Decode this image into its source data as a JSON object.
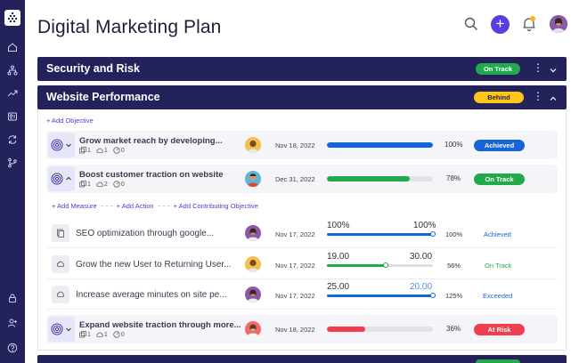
{
  "page": {
    "title": "Digital Marketing Plan"
  },
  "header": {
    "add_label": "+"
  },
  "sidebar": {
    "logo": "logo-icon",
    "items": [
      "home-icon",
      "hierarchy-icon",
      "trend-icon",
      "people-icon",
      "refresh-icon",
      "branch-icon"
    ],
    "bottom": [
      "lock-icon",
      "user-add-icon",
      "help-icon"
    ]
  },
  "colors": {
    "navy": "#24225b",
    "accent": "#5a3fe0",
    "green": "#22a94b",
    "blue": "#1565d8",
    "yellow": "#ffc61a",
    "red": "#f03e4f"
  },
  "sections": {
    "security": {
      "title": "Security and Risk",
      "status": "On Track"
    },
    "performance": {
      "title": "Website Performance",
      "status": "Behind"
    }
  },
  "performance": {
    "add_objective": "+ Add Objective",
    "objectives": [
      {
        "title": "Grow market reach by developing...",
        "meta": [
          "1",
          "1",
          "0"
        ],
        "date": "Nov 18, 2022",
        "progress": 100,
        "pct": "100%",
        "status": "Achieved"
      },
      {
        "title": "Boost customer traction on website",
        "meta": [
          "1",
          "2",
          "0"
        ],
        "date": "Dec 31, 2022",
        "progress": 78,
        "pct": "78%",
        "status": "On Track"
      },
      {
        "title": "Expand website traction through more...",
        "meta": [
          "1",
          "1",
          "0"
        ],
        "date": "Nov 18, 2022",
        "progress": 36,
        "pct": "36%",
        "status": "At Risk"
      }
    ],
    "actions": {
      "add_measure": "+ Add Measure",
      "add_action": "+ Add Action",
      "add_contributing": "+ Add Contributing Objective"
    },
    "measures": [
      {
        "title": "SEO optimization through google...",
        "date": "Nov 17, 2022",
        "current": "100%",
        "target": "100%",
        "progress": 100,
        "pct": "100%",
        "status": "Achieved"
      },
      {
        "title": "Grow the new User to Returning User...",
        "date": "Nov 17, 2022",
        "current": "19.00",
        "target": "30.00",
        "progress": 56,
        "pct": "56%",
        "status": "On Track"
      },
      {
        "title": "Increase average minutes on site pe...",
        "date": "Nov 17, 2022",
        "current": "25.00",
        "target": "20.00",
        "progress": 100,
        "pct": "125%",
        "status": "Exceeded"
      }
    ]
  }
}
